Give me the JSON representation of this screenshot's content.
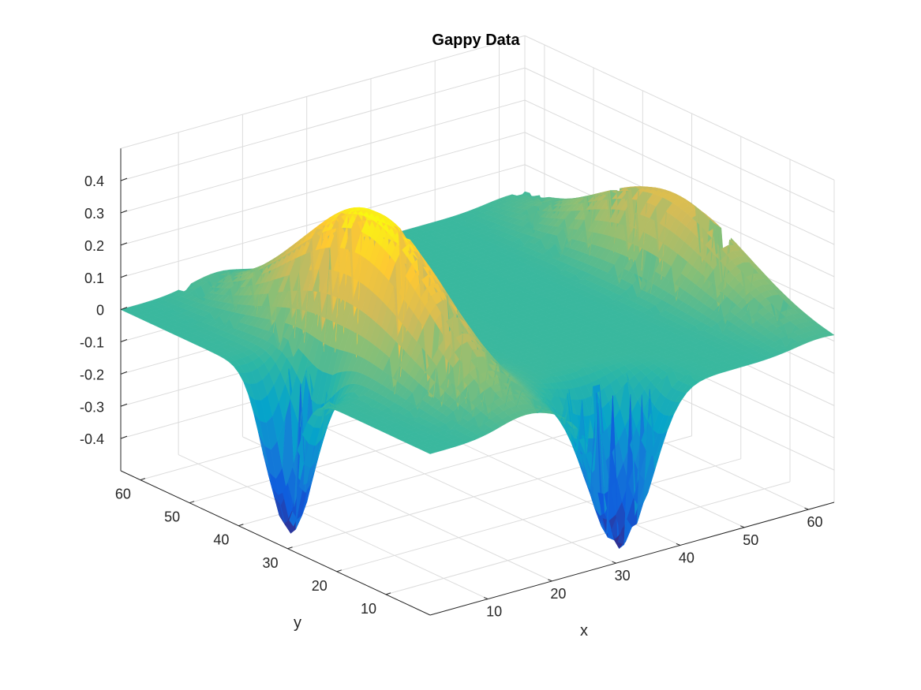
{
  "chart_data": {
    "type": "surface",
    "title": "Gappy Data",
    "xlabel": "x",
    "ylabel": "y",
    "zlabel": "",
    "x_range": [
      1,
      64
    ],
    "y_range": [
      1,
      64
    ],
    "z_range": [
      -0.5,
      0.5
    ],
    "x_ticks": [
      10,
      20,
      30,
      40,
      50,
      60
    ],
    "y_ticks": [
      10,
      20,
      30,
      40,
      50,
      60
    ],
    "z_ticks": [
      -0.4,
      -0.3,
      -0.2,
      -0.1,
      0,
      0.1,
      0.2,
      0.3,
      0.4
    ],
    "x_tick_labels": [
      "10",
      "20",
      "30",
      "40",
      "50",
      "60"
    ],
    "y_tick_labels": [
      "10",
      "20",
      "30",
      "40",
      "50",
      "60"
    ],
    "z_tick_labels": [
      "-0.4",
      "-0.3",
      "-0.2",
      "-0.1",
      "0",
      "0.1",
      "0.2",
      "0.3",
      "0.4"
    ],
    "grid": true,
    "colormap": "parula",
    "colormap_colors": [
      "#352a87",
      "#0f5cdd",
      "#1481d6",
      "#06a4ca",
      "#2eb7a4",
      "#87bf77",
      "#d1bb59",
      "#fec832",
      "#f9fb0e"
    ],
    "surface_features": [
      {
        "kind": "peak",
        "x": 16,
        "y": 32,
        "z": 0.45
      },
      {
        "kind": "trough",
        "x": 3,
        "y": 32,
        "z": -0.48
      },
      {
        "kind": "peak",
        "x": 62,
        "y": 32,
        "z": 0.25
      },
      {
        "kind": "trough",
        "x": 32,
        "y": 3,
        "z": -0.48
      }
    ]
  }
}
